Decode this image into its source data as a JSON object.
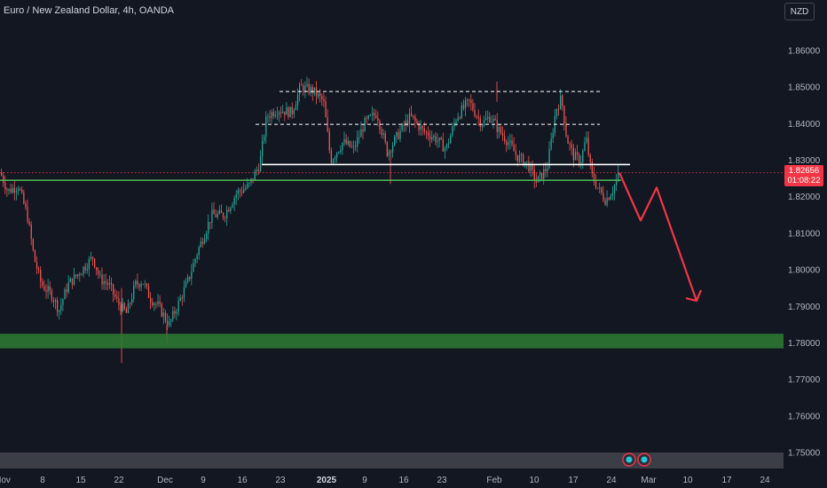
{
  "header": {
    "symbol_title": "Euro / New Zealand Dollar, 4h, OANDA",
    "currency_button": "NZD"
  },
  "price_tag": {
    "price": "1.82656",
    "countdown": "01:08:22"
  },
  "colors": {
    "background": "#131722",
    "bull": "#26a69a",
    "bear": "#ef5350",
    "support_zone": "#2e7d32",
    "arrow": "#f23645",
    "support_line": "#4caf50",
    "resistance_line": "#ffffff"
  },
  "chart_data": {
    "type": "candlestick",
    "y_ticks": [
      "1.86000",
      "1.85000",
      "1.84000",
      "1.83000",
      "1.82000",
      "1.81000",
      "1.80000",
      "1.79000",
      "1.78000",
      "1.77000",
      "1.76000",
      "1.75000"
    ],
    "ylim": [
      1.7475,
      1.8675
    ],
    "x_ticks": [
      "Nov",
      "8",
      "15",
      "22",
      "Dec",
      "9",
      "16",
      "23",
      "2025",
      "9",
      "16",
      "23",
      "Feb",
      "10",
      "17",
      "24",
      "Mar",
      "10",
      "17",
      "24"
    ],
    "grid": false,
    "annotations": {
      "support_zone": [
        1.7785,
        1.7825
      ],
      "horizontal_line_white": 1.8288,
      "horizontal_line_green": 1.8245,
      "dashed_line_upper": 1.8488,
      "dashed_line_lower": 1.8398,
      "current_price": 1.82656,
      "projected_path": [
        1.8266,
        1.8135,
        1.8225,
        1.7915
      ]
    }
  },
  "tool_icons": [
    "event-icon-1",
    "event-icon-2"
  ]
}
